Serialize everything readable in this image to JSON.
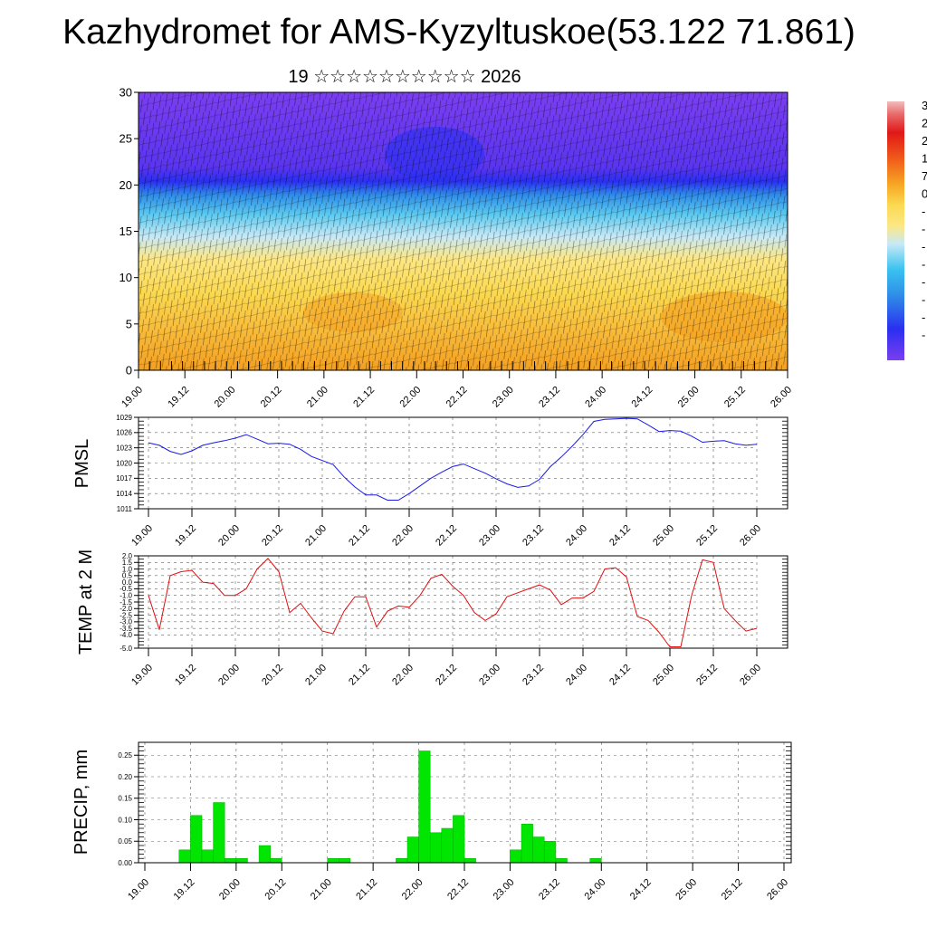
{
  "title": "Kazhydromet for AMS-Kyzyltuskoe(53.122 71.861)",
  "subtitle": "19 ☆☆☆☆☆☆☆☆☆☆ 2026",
  "chart_data": [
    {
      "type": "heatmap",
      "name": "vertical cross-section",
      "x_tick_labels": [
        "19.00",
        "19.12",
        "20.00",
        "20.12",
        "21.00",
        "21.12",
        "22.00",
        "22.12",
        "23.00",
        "23.12",
        "24.00",
        "24.12",
        "25.00",
        "25.12",
        "26.00"
      ],
      "ylim": [
        0,
        30
      ],
      "y_ticks": [
        0,
        5,
        10,
        15,
        20,
        25,
        30
      ],
      "colorbar_labels": [
        "3",
        "2",
        "2",
        "1",
        "7",
        "0",
        "-",
        "-",
        "-",
        "-",
        "-",
        "-",
        "-",
        "-"
      ],
      "colors": {
        "warm": "#f5a623",
        "yellow": "#fbe24a",
        "cyan": "#39c2f0",
        "blue": "#2a2ff0",
        "violet": "#7a3cf0"
      }
    },
    {
      "type": "line",
      "name": "PMSL",
      "ylabel": "PMSL",
      "ylim": [
        1011,
        1029
      ],
      "y_ticks": [
        1011,
        1014,
        1017,
        1020,
        1023,
        1026,
        1029
      ],
      "x_tick_labels": [
        "19.00",
        "19.12",
        "20.00",
        "20.12",
        "21.00",
        "21.12",
        "22.00",
        "22.12",
        "23.00",
        "23.12",
        "24.00",
        "24.12",
        "25.00",
        "25.12",
        "26.00"
      ],
      "values": [
        1024.0,
        1023.5,
        1022.3,
        1021.7,
        1022.4,
        1023.5,
        1024.0,
        1024.4,
        1024.9,
        1025.6,
        1024.7,
        1023.8,
        1023.9,
        1023.7,
        1022.7,
        1021.3,
        1020.5,
        1019.7,
        1017.3,
        1015.3,
        1013.7,
        1013.7,
        1012.7,
        1012.7,
        1014.0,
        1015.5,
        1017.0,
        1018.2,
        1019.3,
        1019.8,
        1018.9,
        1018.0,
        1016.9,
        1015.9,
        1015.2,
        1015.5,
        1016.8,
        1019.3,
        1021.2,
        1023.3,
        1025.6,
        1028.2,
        1028.6,
        1028.7,
        1028.8,
        1028.7,
        1027.5,
        1026.2,
        1026.4,
        1026.3,
        1025.3,
        1024.1,
        1024.3,
        1024.4,
        1023.8,
        1023.5,
        1023.7
      ]
    },
    {
      "type": "line",
      "name": "TEMP at 2 M",
      "ylabel": "TEMP at 2 M",
      "ylim": [
        -5.0,
        2.0
      ],
      "y_ticks": [
        "-5.0",
        "-4.0",
        "-3.5",
        "-3.0",
        "-2.5",
        "-2.0",
        "-1.5",
        "-1.0",
        "-0.5",
        "0.0",
        "0.5",
        "1.0",
        "1.5",
        "2.0"
      ],
      "x_tick_labels": [
        "19.00",
        "19.12",
        "20.00",
        "20.12",
        "21.00",
        "21.12",
        "22.00",
        "22.12",
        "23.00",
        "23.12",
        "24.00",
        "24.12",
        "25.00",
        "25.12",
        "26.00"
      ],
      "values": [
        -1.0,
        -3.6,
        0.5,
        0.8,
        0.9,
        0.0,
        -0.1,
        -1.0,
        -1.0,
        -0.5,
        1.0,
        1.8,
        0.8,
        -2.3,
        -1.6,
        -2.7,
        -3.7,
        -3.9,
        -2.2,
        -1.1,
        -1.1,
        -3.4,
        -2.2,
        -1.8,
        -1.9,
        -1.0,
        0.3,
        0.6,
        -0.3,
        -1.0,
        -2.3,
        -2.9,
        -2.4,
        -1.1,
        -0.8,
        -0.5,
        -0.2,
        -0.6,
        -1.7,
        -1.2,
        -1.2,
        -0.7,
        1.0,
        1.1,
        0.4,
        -2.6,
        -2.9,
        -3.8,
        -4.9,
        -4.9,
        -1.0,
        1.7,
        1.5,
        -2.0,
        -2.9,
        -3.7,
        -3.5
      ]
    },
    {
      "type": "bar",
      "name": "PRECIP, mm",
      "ylabel": "PRECIP, mm",
      "ylim": [
        0,
        0.28
      ],
      "y_ticks": [
        "0.00",
        "0.05",
        "0.10",
        "0.15",
        "0.20",
        "0.25"
      ],
      "x_tick_labels": [
        "19.00",
        "19.12",
        "20.00",
        "20.12",
        "21.00",
        "21.12",
        "22.00",
        "22.12",
        "23.00",
        "23.12",
        "24.00",
        "24.12",
        "25.00",
        "25.12",
        "26.00"
      ],
      "values": [
        0,
        0,
        0,
        0.03,
        0.11,
        0.03,
        0.14,
        0.01,
        0.01,
        0,
        0.04,
        0.01,
        0,
        0,
        0,
        0,
        0.01,
        0.01,
        0,
        0,
        0,
        0,
        0.01,
        0.06,
        0.26,
        0.07,
        0.08,
        0.11,
        0.01,
        0,
        0,
        0,
        0.03,
        0.09,
        0.06,
        0.05,
        0.01,
        0,
        0,
        0.01,
        0,
        0,
        0,
        0,
        0,
        0,
        0,
        0,
        0,
        0,
        0,
        0,
        0,
        0,
        0,
        0
      ]
    }
  ]
}
